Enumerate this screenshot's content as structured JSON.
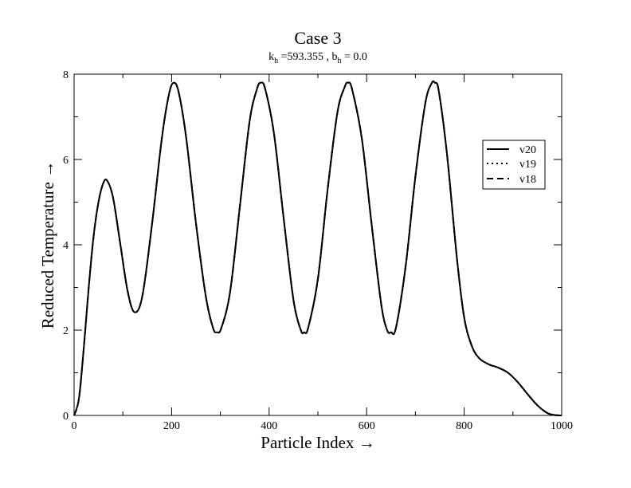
{
  "chart_data": {
    "type": "line",
    "title": "Case 3",
    "subtitle": {
      "k": "k",
      "k_sub": "h",
      "k_value": " =593.355 , ",
      "b": "b",
      "b_sub": "h",
      "b_value": " = 0.0"
    },
    "xlabel": "Particle  Index →",
    "ylabel": "Reduced  Temperature →",
    "xlim": [
      0,
      1000
    ],
    "ylim": [
      0,
      8
    ],
    "xticks": [
      0,
      200,
      400,
      600,
      800,
      1000
    ],
    "yticks": [
      0,
      2,
      4,
      6,
      8
    ],
    "grid": false,
    "legend_position": "right",
    "series": [
      {
        "name": "v20",
        "style": "solid"
      },
      {
        "name": "v19",
        "style": "dotted"
      },
      {
        "name": "v18",
        "style": "dashed"
      }
    ],
    "x": [
      0,
      10,
      20,
      30,
      40,
      50,
      60,
      68,
      80,
      95,
      110,
      124,
      140,
      160,
      180,
      195,
      205,
      215,
      230,
      250,
      270,
      285,
      293,
      302,
      320,
      340,
      360,
      375,
      383,
      392,
      410,
      430,
      450,
      465,
      472,
      480,
      500,
      520,
      540,
      555,
      562,
      570,
      590,
      610,
      630,
      642,
      650,
      660,
      680,
      700,
      720,
      733,
      740,
      748,
      765,
      785,
      800,
      815,
      830,
      850,
      870,
      890,
      910,
      930,
      950,
      970,
      985,
      1000
    ],
    "y": [
      0.0,
      0.4,
      1.6,
      3.0,
      4.2,
      5.0,
      5.45,
      5.5,
      5.1,
      4.0,
      2.9,
      2.42,
      2.8,
      4.5,
      6.5,
      7.55,
      7.8,
      7.55,
      6.5,
      4.5,
      2.8,
      2.05,
      1.95,
      2.05,
      2.9,
      4.9,
      6.9,
      7.65,
      7.8,
      7.65,
      6.6,
      4.6,
      2.7,
      2.0,
      1.95,
      2.05,
      3.2,
      5.3,
      7.1,
      7.7,
      7.8,
      7.65,
      6.5,
      4.5,
      2.6,
      2.0,
      1.95,
      2.05,
      3.5,
      5.6,
      7.3,
      7.78,
      7.8,
      7.6,
      6.1,
      3.7,
      2.3,
      1.65,
      1.35,
      1.2,
      1.12,
      1.0,
      0.78,
      0.5,
      0.24,
      0.06,
      0.01,
      0.0
    ]
  }
}
